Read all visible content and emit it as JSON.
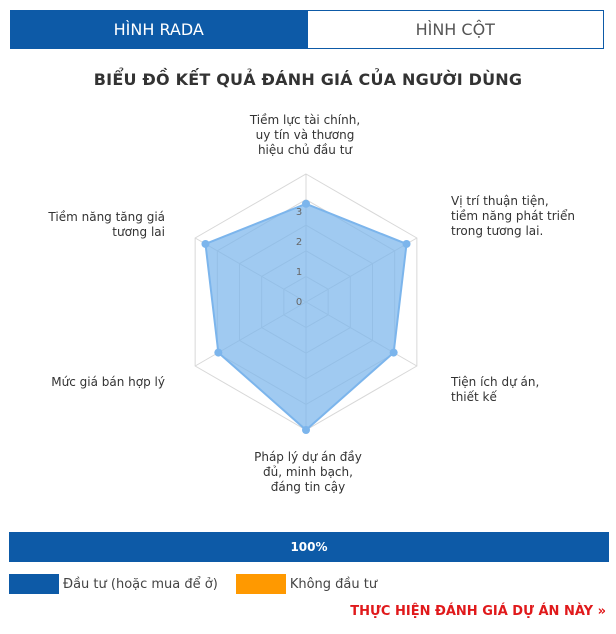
{
  "tabs": [
    {
      "label": "HÌNH RADA",
      "active": true
    },
    {
      "label": "HÌNH CỘT",
      "active": false
    }
  ],
  "chart_data": {
    "type": "radar",
    "title": "BIỂU ĐỒ KẾT QUẢ ĐÁNH GIÁ CỦA NGƯỜI DÙNG",
    "categories": [
      "Tiềm lực tài chính, uy tín và thương hiệu chủ đầu tư",
      "Vị trí thuận tiện, tiềm năng phát triển trong tương lai.",
      "Tiện ích dự án, thiết kế",
      "Pháp lý dự án đầy đủ, minh bạch, đáng tin cậy",
      "Mức giá bán hợp lý",
      "Tiềm năng tăng giá tương lai"
    ],
    "scale_labels": [
      "0",
      "1",
      "2",
      "3"
    ],
    "rmax": 4.3,
    "series": [
      {
        "values": [
          3.3,
          3.9,
          3.4,
          4.3,
          3.4,
          3.9
        ],
        "color": "#7cb5ec"
      }
    ]
  },
  "progress": {
    "label": "100%",
    "value": 100
  },
  "legend": [
    {
      "label": "Đầu tư (hoặc mua để ở)",
      "color": "#0d5aa7"
    },
    {
      "label": "Không đầu tư",
      "color": "#ff9900"
    }
  ],
  "cta": {
    "label": "THỰC HIỆN ĐÁNH GIÁ DỰ ÁN NÀY »"
  }
}
